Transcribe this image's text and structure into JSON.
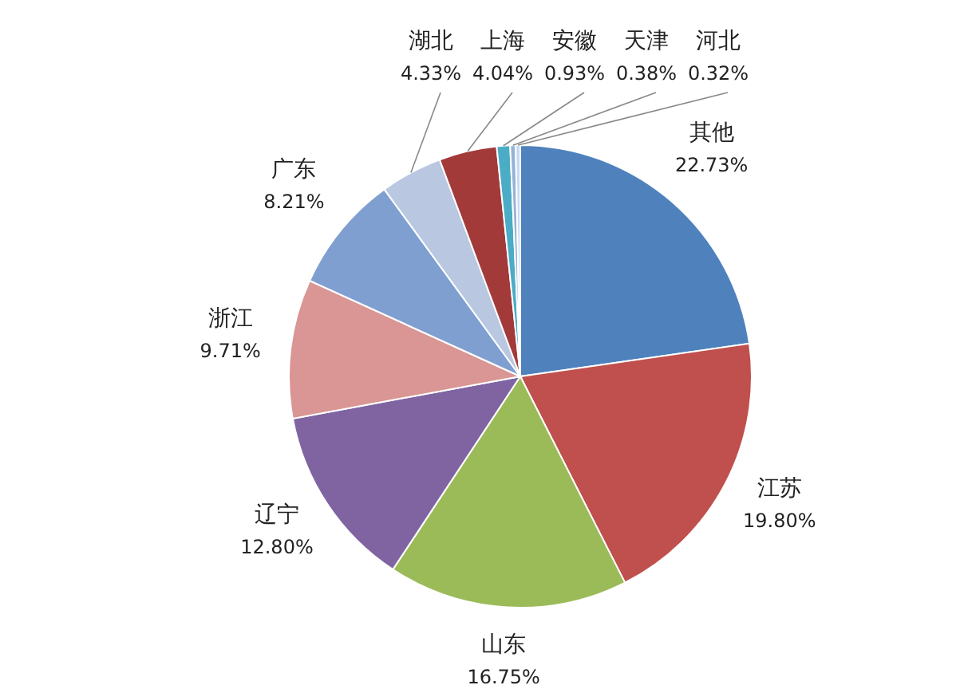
{
  "chart_data": {
    "type": "pie",
    "categories": [
      "其他",
      "江苏",
      "山东",
      "辽宁",
      "浙江",
      "广东",
      "湖北",
      "上海",
      "安徽",
      "天津",
      "河北"
    ],
    "values": [
      22.73,
      19.8,
      16.75,
      12.8,
      9.71,
      8.21,
      4.33,
      4.04,
      0.93,
      0.38,
      0.32
    ],
    "value_labels": [
      "22.73%",
      "19.80%",
      "16.75%",
      "12.80%",
      "9.71%",
      "8.21%",
      "4.33%",
      "4.04%",
      "0.93%",
      "0.38%",
      "0.32%"
    ],
    "colors": [
      "#4f81bd",
      "#c0504d",
      "#9bbb59",
      "#8064a2",
      "#d99694",
      "#7f9fd0",
      "#b9c7e0",
      "#a33a3a",
      "#4bacc6",
      "#95b3d7",
      "#c6d9f1"
    ],
    "legend": false
  }
}
